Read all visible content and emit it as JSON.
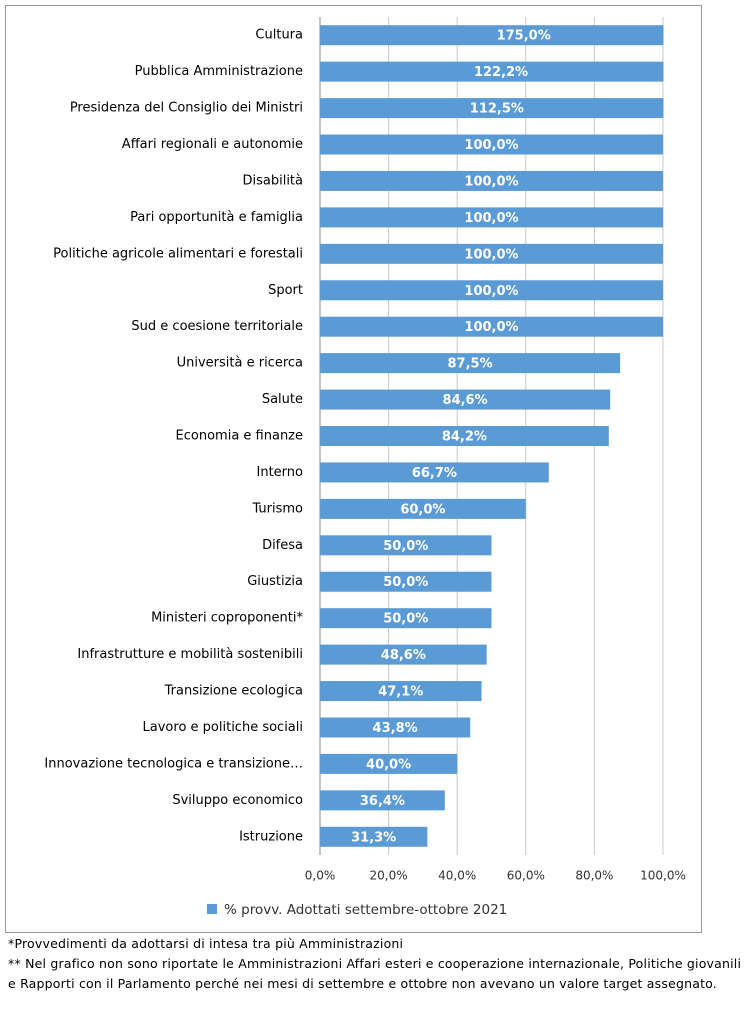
{
  "chart_data": {
    "type": "bar",
    "orientation": "horizontal",
    "categories": [
      "Cultura",
      "Pubblica Amministrazione",
      "Presidenza del Consiglio dei Ministri",
      "Affari regionali e autonomie",
      "Disabilità",
      "Pari opportunità e famiglia",
      "Politiche agricole alimentari e forestali",
      "Sport",
      "Sud e coesione territoriale",
      "Università e ricerca",
      "Salute",
      "Economia e finanze",
      "Interno",
      "Turismo",
      "Difesa",
      "Giustizia",
      "Ministeri coproponenti*",
      "Infrastrutture e mobilità sostenibili",
      "Transizione ecologica",
      "Lavoro e politiche sociali",
      "Innovazione tecnologica e transizione…",
      "Sviluppo economico",
      "Istruzione"
    ],
    "series": [
      {
        "name": "% provv. Adottati settembre-ottobre 2021",
        "color": "#5b9bd5",
        "values": [
          175.0,
          122.2,
          112.5,
          100.0,
          100.0,
          100.0,
          100.0,
          100.0,
          100.0,
          87.5,
          84.6,
          84.2,
          66.7,
          60.0,
          50.0,
          50.0,
          50.0,
          48.6,
          47.1,
          43.8,
          40.0,
          36.4,
          31.3
        ],
        "value_labels": [
          "175,0%",
          "122,2%",
          "112,5%",
          "100,0%",
          "100,0%",
          "100,0%",
          "100,0%",
          "100,0%",
          "100,0%",
          "87,5%",
          "84,6%",
          "84,2%",
          "66,7%",
          "60,0%",
          "50,0%",
          "50,0%",
          "50,0%",
          "48,6%",
          "47,1%",
          "43,8%",
          "40,0%",
          "36,4%",
          "31,3%"
        ]
      }
    ],
    "xlim": [
      0,
      100
    ],
    "xticks": [
      {
        "value": 0,
        "label": "0,0%"
      },
      {
        "value": 20,
        "label": "20,0%"
      },
      {
        "value": 40,
        "label": "40,0%"
      },
      {
        "value": 60,
        "label": "60,0%"
      },
      {
        "value": 80,
        "label": "80,0%"
      },
      {
        "value": 100,
        "label": "100,0%"
      }
    ],
    "grid": true,
    "legend": "bottom"
  },
  "notes": [
    "*Provvedimenti da adottarsi di intesa tra più Amministrazioni",
    "** Nel grafico non sono riportate le Amministrazioni Affari esteri e cooperazione internazionale, Politiche giovanili e Rapporti con il Parlamento perché nei mesi di settembre e ottobre non avevano un valore target assegnato."
  ]
}
